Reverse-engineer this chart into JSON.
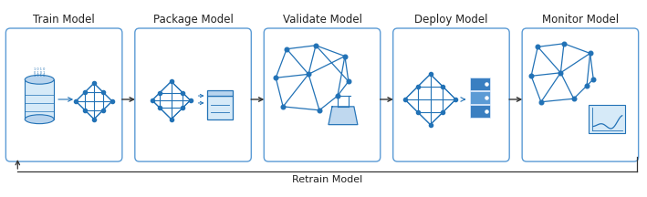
{
  "background_color": "#ffffff",
  "box_color": "#ffffff",
  "box_border_color": "#5b9bd5",
  "titles": [
    "Train Model",
    "Package Model",
    "Validate Model",
    "Deploy Model",
    "Monitor Model"
  ],
  "title_fontsize": 8.5,
  "label_fontsize": 8.0,
  "retrain_label": "Retrain Model",
  "node_color": "#2272b6",
  "edge_color": "#2272b6",
  "arrow_color": "#333333",
  "light_blue_fill": "#d6eaf8",
  "mid_blue": "#4a90d9"
}
